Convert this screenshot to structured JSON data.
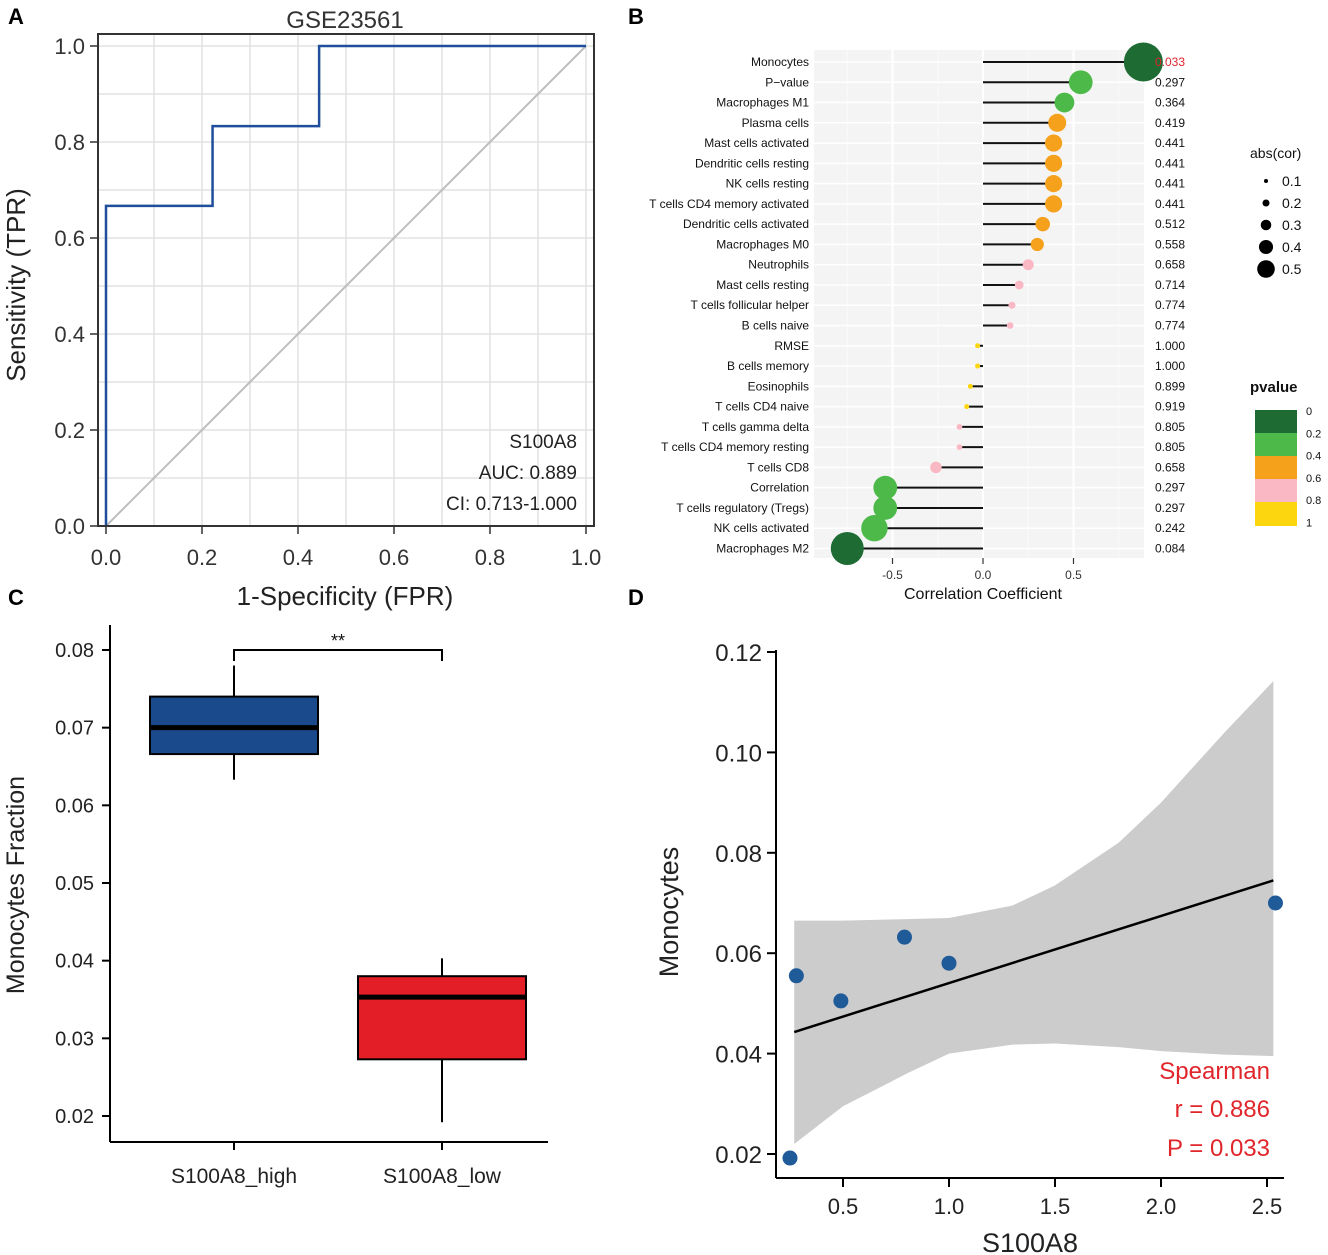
{
  "panel_labels": [
    "A",
    "B",
    "C",
    "D"
  ],
  "chart_data": [
    {
      "panel": "A",
      "type": "line",
      "title": "GSE23561",
      "xlabel": "1-Specificity (FPR)",
      "ylabel": "Sensitivity (TPR)",
      "xlim": [
        0,
        1
      ],
      "ylim": [
        0,
        1
      ],
      "x_ticks": [
        0,
        0.2,
        0.4,
        0.6,
        0.8,
        1
      ],
      "x_tick_labels": [
        "0.0",
        "0.2",
        "0.4",
        "0.6",
        "0.8",
        "1.0"
      ],
      "y_ticks": [
        0,
        0.2,
        0.4,
        0.6,
        0.8,
        1
      ],
      "y_tick_labels": [
        "0.0",
        "0.2",
        "0.4",
        "0.6",
        "0.8",
        "1.0"
      ],
      "grid": true,
      "series": [
        {
          "name": "S100A8",
          "color": "#1f4e9c",
          "x": [
            0,
            0,
            0.222,
            0.222,
            0.444,
            0.444,
            1
          ],
          "y": [
            0,
            0.667,
            0.667,
            0.833,
            0.833,
            1,
            1
          ]
        }
      ],
      "reference_line": {
        "x": [
          0,
          1
        ],
        "y": [
          0,
          1
        ],
        "color": "#bdbdbd"
      },
      "annotations": [
        "S100A8",
        "AUC: 0.889",
        "CI: 0.713-1.000"
      ]
    },
    {
      "panel": "B",
      "type": "scatter",
      "subtype": "lollipop",
      "xlabel": "Correlation Coefficient",
      "xlim": [
        -0.85,
        0.9
      ],
      "x_ticks": [
        -0.5,
        0,
        0.5
      ],
      "x_tick_labels": [
        "-0.5",
        "0.0",
        "0.5"
      ],
      "categories": [
        "Monocytes",
        "P−value",
        "Macrophages M1",
        "Plasma cells",
        "Mast cells activated",
        "Dendritic cells resting",
        "NK cells resting",
        "T cells CD4 memory activated",
        "Dendritic cells activated",
        "Macrophages M0",
        "Neutrophils",
        "Mast cells resting",
        "T cells follicular helper",
        "B cells naive",
        "RMSE",
        "B cells memory",
        "Eosinophils",
        "T cells CD4 naive",
        "T cells gamma delta",
        "T cells CD4 memory resting",
        "T cells CD8",
        "Correlation",
        "T cells regulatory (Tregs)",
        "NK cells activated",
        "Macrophages M2"
      ],
      "values": [
        0.886,
        0.54,
        0.45,
        0.41,
        0.39,
        0.39,
        0.39,
        0.39,
        0.33,
        0.3,
        0.25,
        0.2,
        0.16,
        0.15,
        -0.03,
        -0.03,
        -0.07,
        -0.09,
        -0.13,
        -0.13,
        -0.26,
        -0.54,
        -0.54,
        -0.6,
        -0.75
      ],
      "pvalues": [
        "0.033",
        "0.297",
        "0.364",
        "0.419",
        "0.441",
        "0.441",
        "0.441",
        "0.441",
        "0.512",
        "0.558",
        "0.658",
        "0.714",
        "0.774",
        "0.774",
        "1.000",
        "1.000",
        "0.899",
        "0.919",
        "0.805",
        "0.805",
        "0.658",
        "0.297",
        "0.297",
        "0.242",
        "0.084"
      ],
      "highlight_color": "#e0262b",
      "legend_size": {
        "title": "abs(cor)",
        "labels": [
          "0.1",
          "0.2",
          "0.3",
          "0.4",
          "0.5"
        ],
        "values": [
          0.1,
          0.2,
          0.3,
          0.4,
          0.5
        ]
      },
      "legend_color": {
        "title": "pvalue",
        "labels": [
          "0",
          "0.2",
          "0.4",
          "0.6",
          "0.8",
          "1"
        ],
        "colors": [
          "#1e6b34",
          "#4cb948",
          "#f5a11c",
          "#f9b8c4",
          "#fcd710"
        ]
      }
    },
    {
      "panel": "C",
      "type": "bar",
      "subtype": "boxplot",
      "ylabel": "Monocytes Fraction",
      "categories": [
        "S100A8_high",
        "S100A8_low"
      ],
      "ylim": [
        0.018,
        0.082
      ],
      "y_ticks": [
        0.02,
        0.03,
        0.04,
        0.05,
        0.06,
        0.07,
        0.08
      ],
      "y_tick_labels": [
        "0.02",
        "0.03",
        "0.04",
        "0.05",
        "0.06",
        "0.07",
        "0.08"
      ],
      "series": [
        {
          "name": "S100A8_high",
          "color": "#1b4a8c",
          "min": 0.0633,
          "q1": 0.0666,
          "median": 0.07,
          "q3": 0.074,
          "max": 0.078
        },
        {
          "name": "S100A8_low",
          "color": "#e41e26",
          "min": 0.0192,
          "q1": 0.0273,
          "median": 0.0353,
          "q3": 0.038,
          "max": 0.0403
        }
      ],
      "significance": "**"
    },
    {
      "panel": "D",
      "type": "scatter",
      "xlabel": "S100A8",
      "ylabel": "Monocytes",
      "xlim": [
        0.2,
        2.6
      ],
      "ylim": [
        0.017,
        0.122
      ],
      "x_ticks": [
        0.5,
        1,
        1.5,
        2,
        2.5
      ],
      "x_tick_labels": [
        "0.5",
        "1.0",
        "1.5",
        "2.0",
        "2.5"
      ],
      "y_ticks": [
        0.02,
        0.04,
        0.06,
        0.08,
        0.1,
        0.12
      ],
      "y_tick_labels": [
        "0.02",
        "0.04",
        "0.06",
        "0.08",
        "0.10",
        "0.12"
      ],
      "points": {
        "x": [
          0.25,
          0.28,
          0.49,
          0.79,
          1.0,
          2.54
        ],
        "y": [
          0.0192,
          0.0555,
          0.0505,
          0.0632,
          0.058,
          0.07
        ]
      },
      "point_color": "#1f5a99",
      "fit_line": {
        "x": [
          0.27,
          2.53
        ],
        "y": [
          0.0443,
          0.0745
        ]
      },
      "ci_band": {
        "x": [
          0.27,
          0.5,
          0.8,
          1.0,
          1.3,
          1.5,
          1.8,
          2.0,
          2.3,
          2.53
        ],
        "upper": [
          0.0665,
          0.0665,
          0.0668,
          0.067,
          0.0695,
          0.0735,
          0.082,
          0.09,
          0.104,
          0.1142
        ],
        "lower": [
          0.022,
          0.0295,
          0.036,
          0.04,
          0.0418,
          0.042,
          0.0413,
          0.0405,
          0.0398,
          0.0395
        ]
      },
      "annotations": [
        "Spearman",
        "r = 0.886",
        "P = 0.033"
      ],
      "annotation_color": "#e0262b"
    }
  ]
}
